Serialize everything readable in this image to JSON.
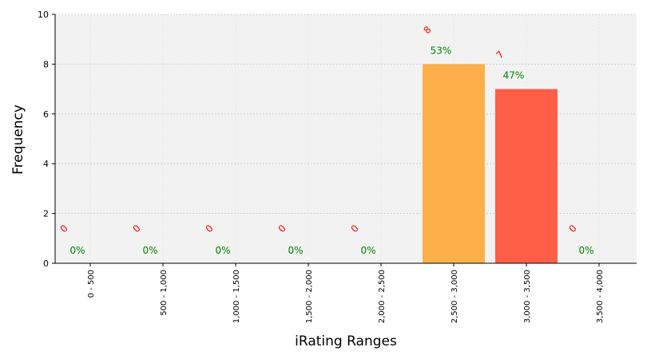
{
  "chart_data": {
    "type": "bar",
    "xlabel": "iRating Ranges",
    "ylabel": "Frequency",
    "categories": [
      "0 - 500",
      "500 - 1,000",
      "1,000 - 1,500",
      "1,500 - 2,000",
      "2,000 - 2,500",
      "2,500 - 3,000",
      "3,000 - 3,500",
      "3,500 - 4,000"
    ],
    "values": [
      0,
      0,
      0,
      0,
      0,
      8,
      7,
      0
    ],
    "count_labels": [
      "0",
      "0",
      "0",
      "0",
      "0",
      "8",
      "7",
      "0"
    ],
    "percent_labels": [
      "0%",
      "0%",
      "0%",
      "0%",
      "0%",
      "53%",
      "47%",
      "0%"
    ],
    "bar_colors": [
      "#4caf50",
      "#4caf50",
      "#4caf50",
      "#4caf50",
      "#4caf50",
      "#fbb04a",
      "#ff5f47",
      "#4caf50"
    ],
    "ylim": [
      0,
      10
    ],
    "yticks": [
      "0",
      "2",
      "4",
      "6",
      "8",
      "10"
    ],
    "grid": true,
    "colors": {
      "plot_background": "#f2f2f2",
      "count_label": "#ff0000",
      "percent_label": "#008000"
    }
  }
}
